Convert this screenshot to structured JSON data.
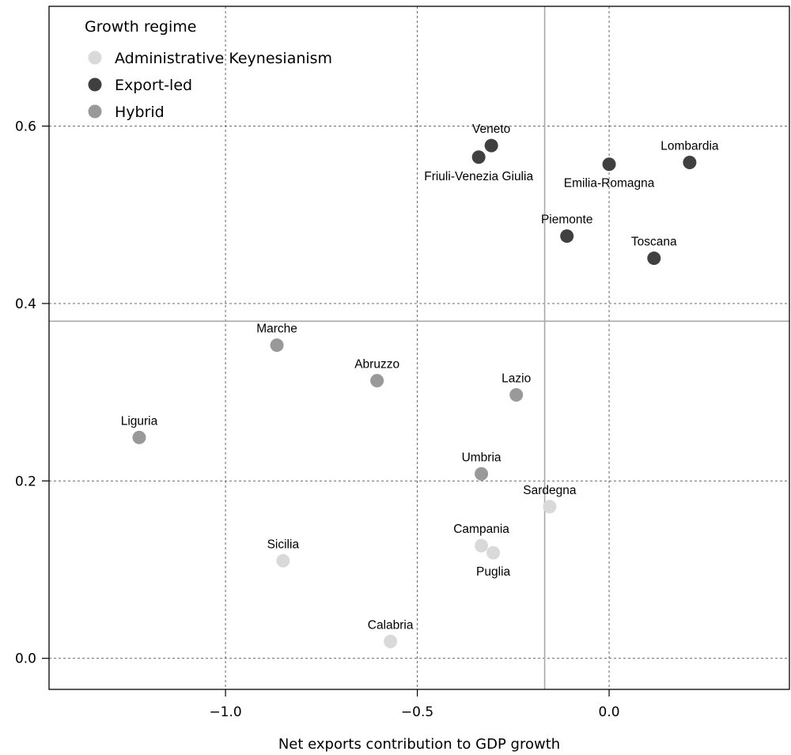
{
  "chart_data": {
    "type": "scatter",
    "title": "",
    "xlabel": "Net exports contribution to GDP growth",
    "ylabel": "",
    "xlim": [
      -1.46,
      0.47
    ],
    "ylim": [
      -0.035,
      0.735
    ],
    "x_ticks": [
      -1.0,
      -0.5,
      0.0
    ],
    "x_tick_labels": [
      "−1.0",
      "−0.5",
      "0.0"
    ],
    "y_ticks": [
      0.0,
      0.2,
      0.4,
      0.6
    ],
    "y_tick_labels": [
      "0.0",
      "0.2",
      "0.4",
      "0.6"
    ],
    "grid": true,
    "reference_lines": {
      "x": -0.168,
      "y": 0.38
    },
    "legend": {
      "title": "Growth regime",
      "position": "top-left",
      "entries": [
        {
          "name": "Administrative Keynesianism",
          "color": "#d9d9d9"
        },
        {
          "name": "Export-led",
          "color": "#404040"
        },
        {
          "name": "Hybrid",
          "color": "#999999"
        }
      ]
    },
    "series": [
      {
        "name": "Administrative Keynesianism",
        "color": "#d9d9d9",
        "points": [
          {
            "label": "Sicilia",
            "x": -0.85,
            "y": 0.11,
            "label_pos": "above"
          },
          {
            "label": "Calabria",
            "x": -0.57,
            "y": 0.019,
            "label_pos": "above"
          },
          {
            "label": "Campania",
            "x": -0.333,
            "y": 0.127,
            "label_pos": "above"
          },
          {
            "label": "Puglia",
            "x": -0.302,
            "y": 0.119,
            "label_pos": "below"
          },
          {
            "label": "Sardegna",
            "x": -0.155,
            "y": 0.171,
            "label_pos": "above"
          }
        ]
      },
      {
        "name": "Export-led",
        "color": "#404040",
        "points": [
          {
            "label": "Veneto",
            "x": -0.307,
            "y": 0.578,
            "label_pos": "above"
          },
          {
            "label": "Friuli-Venezia Giulia",
            "x": -0.34,
            "y": 0.565,
            "label_pos": "below"
          },
          {
            "label": "Lombardia",
            "x": 0.21,
            "y": 0.559,
            "label_pos": "above"
          },
          {
            "label": "Emilia-Romagna",
            "x": 0.0,
            "y": 0.557,
            "label_pos": "below"
          },
          {
            "label": "Piemonte",
            "x": -0.11,
            "y": 0.476,
            "label_pos": "above"
          },
          {
            "label": "Toscana",
            "x": 0.117,
            "y": 0.451,
            "label_pos": "above"
          }
        ]
      },
      {
        "name": "Hybrid",
        "color": "#999999",
        "points": [
          {
            "label": "Marche",
            "x": -0.866,
            "y": 0.353,
            "label_pos": "above"
          },
          {
            "label": "Abruzzo",
            "x": -0.605,
            "y": 0.313,
            "label_pos": "above"
          },
          {
            "label": "Lazio",
            "x": -0.242,
            "y": 0.297,
            "label_pos": "above"
          },
          {
            "label": "Liguria",
            "x": -1.225,
            "y": 0.249,
            "label_pos": "above"
          },
          {
            "label": "Umbria",
            "x": -0.333,
            "y": 0.208,
            "label_pos": "above"
          }
        ]
      }
    ]
  }
}
